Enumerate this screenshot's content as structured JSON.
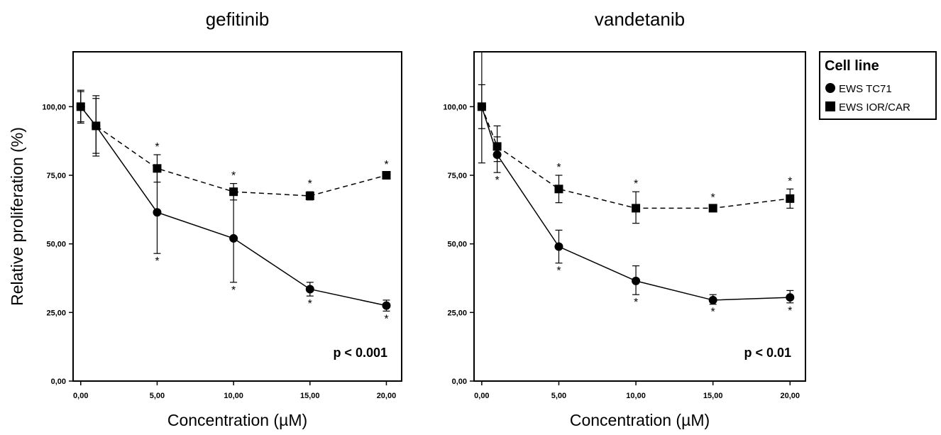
{
  "chart_data": [
    {
      "type": "line",
      "title": "gefitinib",
      "xlabel": "Concentration (µM)",
      "ylabel": "Relative proliferation (%)",
      "xlim": [
        -0.5,
        21
      ],
      "ylim": [
        0,
        120
      ],
      "xticks": [
        0,
        5,
        10,
        15,
        20
      ],
      "xtick_labels": [
        "0,00",
        "5,00",
        "10,00",
        "15,00",
        "20,00"
      ],
      "yticks": [
        0,
        25,
        50,
        75,
        100
      ],
      "ytick_labels": [
        "0,00",
        "25,00",
        "50,00",
        "75,00",
        "100,00"
      ],
      "grid": false,
      "annotation": "p < 0.001",
      "series": [
        {
          "name": "EWS TC71",
          "marker": "circle",
          "line": "solid",
          "x": [
            0,
            1,
            5,
            10,
            15,
            20
          ],
          "y": [
            100,
            93,
            61.5,
            52,
            33.5,
            27.5
          ],
          "err_low": [
            94,
            83,
            46.5,
            36,
            31,
            25.5
          ],
          "err_high": [
            106,
            103,
            76.5,
            68,
            36,
            29.5
          ],
          "significance": [
            "",
            "",
            "*",
            "*",
            "*",
            "*"
          ]
        },
        {
          "name": "EWS IOR/CAR",
          "marker": "square",
          "line": "dashed",
          "x": [
            0,
            1,
            5,
            10,
            15,
            20
          ],
          "y": [
            100,
            93,
            77.5,
            69,
            67.5,
            75
          ],
          "err_low": [
            94.5,
            82,
            72.5,
            66,
            66,
            74
          ],
          "err_high": [
            105.5,
            104,
            82.5,
            72,
            69,
            76
          ],
          "significance": [
            "",
            "",
            "*",
            "*",
            "*",
            "*"
          ]
        }
      ]
    },
    {
      "type": "line",
      "title": "vandetanib",
      "xlabel": "Concentration (µM)",
      "ylabel": "",
      "xlim": [
        -0.5,
        21
      ],
      "ylim": [
        0,
        120
      ],
      "xticks": [
        0,
        5,
        10,
        15,
        20
      ],
      "xtick_labels": [
        "0,00",
        "5,00",
        "10,00",
        "15,00",
        "20,00"
      ],
      "yticks": [
        0,
        25,
        50,
        75,
        100
      ],
      "ytick_labels": [
        "0,00",
        "25,00",
        "50,00",
        "75,00",
        "100,00"
      ],
      "grid": false,
      "annotation": "p < 0.01",
      "series": [
        {
          "name": "EWS TC71",
          "marker": "circle",
          "line": "solid",
          "x": [
            0,
            1,
            5,
            10,
            15,
            20
          ],
          "y": [
            100,
            82.5,
            49,
            36.5,
            29.5,
            30.5
          ],
          "err_low": [
            79.5,
            76,
            43,
            31.5,
            28,
            28.5
          ],
          "err_high": [
            120,
            89,
            55,
            42,
            31.5,
            33
          ],
          "significance": [
            "",
            "*",
            "*",
            "*",
            "*",
            "*"
          ]
        },
        {
          "name": "EWS IOR/CAR",
          "marker": "square",
          "line": "dashed",
          "x": [
            0,
            1,
            5,
            10,
            15,
            20
          ],
          "y": [
            100,
            85.5,
            70,
            63,
            63,
            66.5
          ],
          "err_low": [
            92,
            80,
            65,
            57.5,
            62,
            63
          ],
          "err_high": [
            108,
            93,
            75,
            69,
            64,
            70
          ],
          "significance": [
            "",
            "",
            "*",
            "*",
            "*",
            "*"
          ]
        }
      ]
    }
  ],
  "legend": {
    "title": "Cell line",
    "position": "top-right",
    "items": [
      {
        "label": "EWS TC71",
        "marker": "circle"
      },
      {
        "label": "EWS IOR/CAR",
        "marker": "square"
      }
    ]
  }
}
